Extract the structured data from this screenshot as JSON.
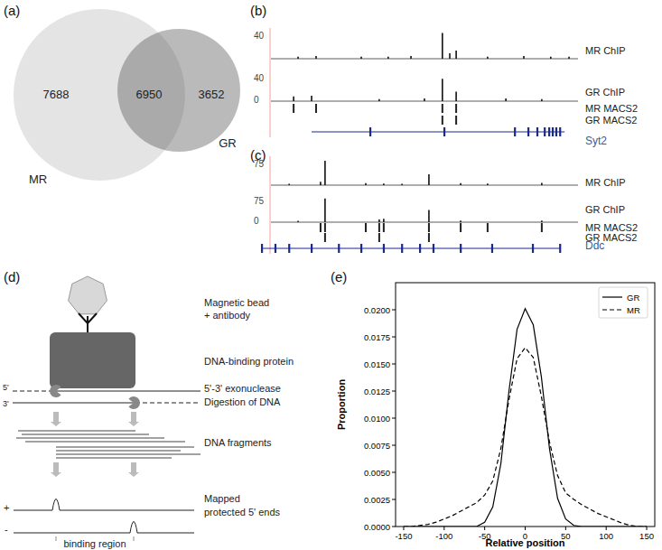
{
  "panels": [
    {
      "label": "(a)",
      "venn": {
        "sets": [
          {
            "name": "MR",
            "only": 7688
          },
          {
            "name": "GR",
            "only": 3652
          }
        ],
        "overlap": 6950
      }
    },
    {
      "label": "(b)",
      "tracks": [
        {
          "name": "MR ChIP",
          "scale_max": 40,
          "peaks": {
            "x": [
              0.127,
              0.183,
              0.324,
              0.408,
              0.479,
              0.577,
              0.6,
              0.62,
              0.718,
              0.831,
              0.915,
              0.972
            ],
            "values": [
              3,
              4,
              3,
              3,
              4,
              38,
              8,
              12,
              3,
              4,
              3,
              3
            ]
          }
        },
        {
          "name": "GR ChIP",
          "scale_max": 40,
          "scale_min": 0,
          "peaks": {
            "x": [
              0.113,
              0.169,
              0.38,
              0.521,
              0.577,
              0.62,
              0.775,
              0.887
            ],
            "values": [
              7,
              8,
              3,
              4,
              33,
              14,
              4,
              3
            ]
          }
        }
      ],
      "intervals": [
        {
          "name": "MR MACS2",
          "x": [
            0.113,
            0.183,
            0.577,
            0.62
          ]
        },
        {
          "name": "GR MACS2",
          "x": [
            0.577,
            0.62
          ]
        }
      ],
      "gene": {
        "name": "Syt2",
        "span": [
          0.169,
          0.958
        ],
        "exons": [
          0.352,
          0.583,
          0.803,
          0.845,
          0.873,
          0.896,
          0.91,
          0.921,
          0.932,
          0.944
        ]
      }
    },
    {
      "label": "(c)",
      "tracks": [
        {
          "name": "MR ChIP",
          "scale_max": 75,
          "peaks": {
            "x": [
              0.099,
              0.197,
              0.211,
              0.338,
              0.394,
              0.451,
              0.535,
              0.634,
              0.718,
              0.887
            ],
            "values": [
              4,
              10,
              72,
              6,
              5,
              4,
              32,
              6,
              5,
              7
            ]
          }
        },
        {
          "name": "GR ChIP",
          "scale_max": 75,
          "scale_min": 0,
          "peaks": {
            "x": [
              0.127,
              0.211,
              0.38,
              0.394,
              0.535,
              0.634,
              0.887
            ],
            "values": [
              4,
              70,
              8,
              10,
              36,
              5,
              5
            ]
          }
        }
      ],
      "intervals": [
        {
          "name": "MR MACS2",
          "x": [
            0.197,
            0.211,
            0.338,
            0.38,
            0.394,
            0.535,
            0.634,
            0.718,
            0.887
          ]
        },
        {
          "name": "GR MACS2",
          "x": [
            0.211,
            0.38,
            0.535
          ]
        }
      ],
      "gene": {
        "name": "Ddc",
        "span": [
          0.014,
          0.944
        ],
        "exons": [
          0.014,
          0.056,
          0.099,
          0.169,
          0.254,
          0.324,
          0.394,
          0.451,
          0.507,
          0.549,
          0.634,
          0.732,
          0.859,
          0.944
        ]
      }
    },
    {
      "label": "(d)",
      "steps": [
        [
          "Magnetic bead",
          "+ antibody"
        ],
        [
          "DNA-binding protein"
        ],
        [
          "5'-3' exonuclease",
          "Digestion of DNA"
        ],
        [
          "DNA fragments"
        ],
        [
          "Mapped",
          "protected 5' ends"
        ]
      ],
      "strand_labels": [
        "5'",
        "3'"
      ],
      "signal_labels": [
        "+",
        "-"
      ],
      "caption": "binding region"
    },
    {
      "label": "(e)"
    }
  ],
  "chart_data": {
    "type": "line",
    "x_label": "Relative position",
    "y_label": "Proportion",
    "x": [
      -150,
      -140,
      -130,
      -120,
      -110,
      -100,
      -90,
      -80,
      -70,
      -60,
      -50,
      -40,
      -30,
      -20,
      -10,
      0,
      10,
      20,
      30,
      40,
      50,
      60,
      70,
      80,
      90,
      100,
      110,
      120,
      130,
      140,
      150
    ],
    "series": [
      {
        "name": "GR",
        "color": "#000000",
        "line_style": "solid",
        "values": [
          0,
          0,
          0,
          0,
          0,
          0,
          0,
          0,
          0,
          0,
          0.0004,
          0.0018,
          0.0058,
          0.0125,
          0.0182,
          0.0201,
          0.0186,
          0.0138,
          0.0072,
          0.0026,
          0.0007,
          0.0001,
          0,
          0,
          0,
          0,
          0,
          0,
          0,
          0,
          0
        ]
      },
      {
        "name": "MR",
        "color": "#000000",
        "line_style": "dashed",
        "values": [
          0,
          0,
          0.0001,
          0.0002,
          0.0004,
          0.0007,
          0.001,
          0.0014,
          0.0018,
          0.0022,
          0.0029,
          0.0042,
          0.0072,
          0.0117,
          0.0155,
          0.0165,
          0.0156,
          0.012,
          0.0078,
          0.0047,
          0.0031,
          0.0025,
          0.002,
          0.0016,
          0.0012,
          0.0009,
          0.0006,
          0.0003,
          0.0001,
          0,
          0
        ]
      }
    ],
    "xlim": [
      -160,
      160
    ],
    "ylim": [
      0,
      0.0225
    ],
    "xticks": [
      -150,
      -100,
      -50,
      0,
      50,
      100,
      150
    ],
    "yticks": [
      {
        "value": 0,
        "label": "0.0000"
      },
      {
        "value": 0.0025,
        "label": "0.0025"
      },
      {
        "value": 0.005,
        "label": "0.0050"
      },
      {
        "value": 0.0075,
        "label": "0.0075"
      },
      {
        "value": 0.01,
        "label": "0.0100"
      },
      {
        "value": 0.0125,
        "label": "0.0125"
      },
      {
        "value": 0.015,
        "label": "0.0150"
      },
      {
        "value": 0.0175,
        "label": "0.0175"
      },
      {
        "value": 0.02,
        "label": "0.0200"
      }
    ],
    "legend": "upper right",
    "grid": false
  }
}
